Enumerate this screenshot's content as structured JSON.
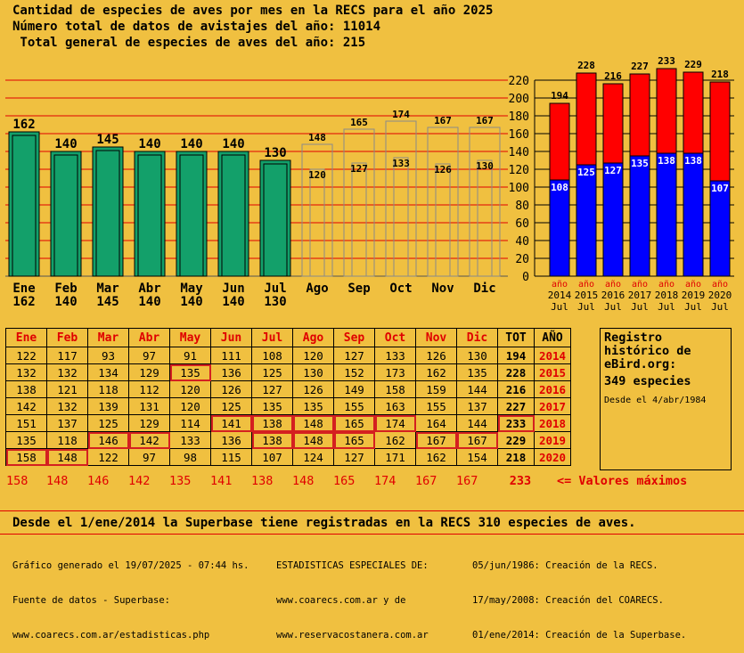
{
  "header": {
    "line1": "Cantidad de especies de aves por mes en la RECS para el año 2025",
    "line2": "Número total de datos de avistajes del año: 11014",
    "line3": " Total general de especies de aves del año: 215"
  },
  "chart_data": [
    {
      "type": "bar",
      "categories": [
        "Ene",
        "Feb",
        "Mar",
        "Abr",
        "May",
        "Jun",
        "Jul",
        "Ago",
        "Sep",
        "Oct",
        "Nov",
        "Dic"
      ],
      "series": [
        {
          "values": [
            162,
            140,
            145,
            140,
            140,
            140,
            130,
            null,
            null,
            null,
            null,
            null
          ]
        },
        {
          "values": [
            null,
            null,
            null,
            null,
            null,
            null,
            null,
            148,
            165,
            174,
            167,
            167
          ]
        },
        {
          "values": [
            null,
            null,
            null,
            null,
            null,
            null,
            null,
            120,
            127,
            133,
            126,
            130
          ]
        }
      ],
      "bottom_labels": [
        "162",
        "140",
        "145",
        "140",
        "140",
        "140",
        "130",
        "",
        "",
        "",
        "",
        ""
      ],
      "ylim": [
        0,
        230
      ],
      "colors": {
        "current": "#13a06a",
        "max": "#f0c040",
        "prev": "#f0c040",
        "grid": "#e00000"
      }
    },
    {
      "type": "bar",
      "categories": [
        "2014",
        "2015",
        "2016",
        "2017",
        "2018",
        "2019",
        "2020"
      ],
      "category_sublabels": [
        "año",
        "año",
        "año",
        "año",
        "año",
        "año",
        "año"
      ],
      "category_footer": [
        "Jul",
        "Jul",
        "Jul",
        "Jul",
        "Jul",
        "Jul",
        "Jul"
      ],
      "series": [
        {
          "values": [
            108,
            125,
            127,
            135,
            138,
            138,
            107
          ]
        },
        {
          "values": [
            194,
            228,
            216,
            227,
            233,
            229,
            218
          ]
        }
      ],
      "yticks": [
        0,
        20,
        40,
        60,
        80,
        100,
        120,
        140,
        160,
        180,
        200,
        220
      ],
      "ylim": [
        0,
        230
      ],
      "colors": {
        "partial": "#0000ff",
        "total": "#ff0000"
      }
    }
  ],
  "table": {
    "headers": [
      "Ene",
      "Feb",
      "Mar",
      "Abr",
      "May",
      "Jun",
      "Jul",
      "Ago",
      "Sep",
      "Oct",
      "Nov",
      "Dic",
      "TOT",
      "AÑO"
    ],
    "rows": [
      {
        "vals": [
          122,
          117,
          93,
          97,
          91,
          111,
          108,
          120,
          127,
          133,
          126,
          130
        ],
        "tot": 194,
        "year": "2014",
        "max": []
      },
      {
        "vals": [
          132,
          132,
          134,
          129,
          135,
          136,
          125,
          130,
          152,
          173,
          162,
          135
        ],
        "tot": 228,
        "year": "2015",
        "max": [
          4
        ]
      },
      {
        "vals": [
          138,
          121,
          118,
          112,
          120,
          126,
          127,
          126,
          149,
          158,
          159,
          144
        ],
        "tot": 216,
        "year": "2016",
        "max": []
      },
      {
        "vals": [
          142,
          132,
          139,
          131,
          120,
          125,
          135,
          135,
          155,
          163,
          155,
          137
        ],
        "tot": 227,
        "year": "2017",
        "max": []
      },
      {
        "vals": [
          151,
          137,
          125,
          129,
          114,
          141,
          138,
          148,
          165,
          174,
          164,
          144
        ],
        "tot": 233,
        "year": "2018",
        "max": [
          5,
          6,
          7,
          8,
          9,
          12
        ]
      },
      {
        "vals": [
          135,
          118,
          146,
          142,
          133,
          136,
          138,
          148,
          165,
          162,
          167,
          167
        ],
        "tot": 229,
        "year": "2019",
        "max": [
          2,
          3,
          6,
          7,
          8,
          10,
          11
        ]
      },
      {
        "vals": [
          158,
          148,
          122,
          97,
          98,
          115,
          107,
          124,
          127,
          171,
          162,
          154
        ],
        "tot": 218,
        "year": "2020",
        "max": [
          0,
          1
        ]
      }
    ],
    "max_values": [
      "158",
      "148",
      "146",
      "142",
      "135",
      "141",
      "138",
      "148",
      "165",
      "174",
      "167",
      "167",
      "233"
    ],
    "max_label": "<= Valores máximos"
  },
  "ebird": {
    "l1": "Registro",
    "l2": "histórico de",
    "l3": "eBird.org:",
    "l4": "349 especies",
    "l5": "Desde el 4/abr/1984"
  },
  "summary": "Desde el 1/ene/2014 la Superbase tiene registradas en la RECS 310 especies de aves.",
  "footer": {
    "c1": [
      "Gráfico generado el 19/07/2025 - 07:44 hs.",
      "Fuente de datos - Superbase:",
      "www.coarecs.com.ar/estadisticas.php"
    ],
    "c2": [
      "ESTADISTICAS ESPECIALES DE:",
      "www.coarecs.com.ar y de",
      "www.reservacostanera.com.ar"
    ],
    "c3": [
      "05/jun/1986: Creación de la RECS.",
      "17/may/2008: Creación del COARECS.",
      "01/ene/2014: Creación de la Superbase."
    ]
  }
}
